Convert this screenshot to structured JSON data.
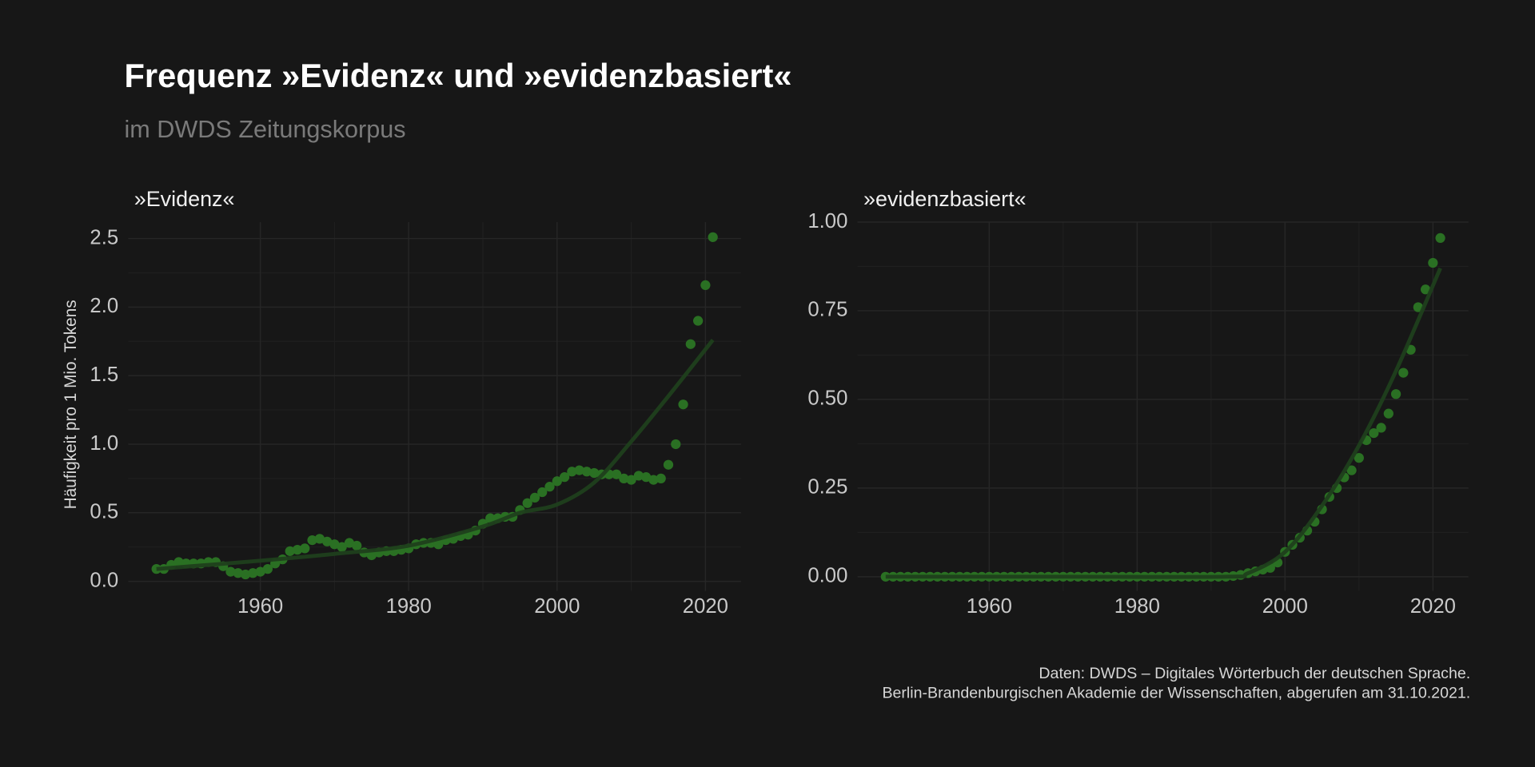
{
  "title": "Frequenz »Evidenz« und »evidenzbasiert«",
  "subtitle": "im DWDS Zeitungskorpus",
  "caption": [
    "Daten: DWDS – Digitales Wörterbuch der deutschen Sprache.",
    "Berlin-Brandenburgischen Akademie der Wissenschaften, abgerufen am 31.10.2021."
  ],
  "chart_data": [
    {
      "type": "scatter",
      "title": "»Evidenz«",
      "ylabel": "Häufigkeit pro 1 Mio. Tokens",
      "x": [
        1946,
        1947,
        1948,
        1949,
        1950,
        1951,
        1952,
        1953,
        1954,
        1955,
        1956,
        1957,
        1958,
        1959,
        1960,
        1961,
        1962,
        1963,
        1964,
        1965,
        1966,
        1967,
        1968,
        1969,
        1970,
        1971,
        1972,
        1973,
        1974,
        1975,
        1976,
        1977,
        1978,
        1979,
        1980,
        1981,
        1982,
        1983,
        1984,
        1985,
        1986,
        1987,
        1988,
        1989,
        1990,
        1991,
        1992,
        1993,
        1994,
        1995,
        1996,
        1997,
        1998,
        1999,
        2000,
        2001,
        2002,
        2003,
        2004,
        2005,
        2006,
        2007,
        2008,
        2009,
        2010,
        2011,
        2012,
        2013,
        2014,
        2015,
        2016,
        2017,
        2018,
        2019,
        2020,
        2021
      ],
      "series": [
        {
          "color": "#2a7023",
          "values": [
            0.09,
            0.09,
            0.12,
            0.14,
            0.13,
            0.13,
            0.13,
            0.14,
            0.14,
            0.11,
            0.07,
            0.06,
            0.05,
            0.06,
            0.07,
            0.09,
            0.13,
            0.16,
            0.22,
            0.23,
            0.24,
            0.3,
            0.31,
            0.29,
            0.27,
            0.25,
            0.28,
            0.26,
            0.21,
            0.19,
            0.21,
            0.22,
            0.22,
            0.23,
            0.24,
            0.27,
            0.28,
            0.28,
            0.27,
            0.3,
            0.31,
            0.33,
            0.34,
            0.37,
            0.42,
            0.46,
            0.46,
            0.47,
            0.47,
            0.52,
            0.57,
            0.61,
            0.65,
            0.69,
            0.73,
            0.76,
            0.8,
            0.81,
            0.8,
            0.79,
            0.78,
            0.78,
            0.78,
            0.75,
            0.74,
            0.77,
            0.76,
            0.74,
            0.75,
            0.85,
            1.0,
            1.29,
            1.73,
            1.9,
            2.16,
            2.51
          ]
        }
      ],
      "trend": {
        "color": "#1f3f1c",
        "x": [
          1946,
          1960,
          1970,
          1980,
          1990,
          1995,
          2000,
          2005,
          2010,
          2015,
          2021
        ],
        "values": [
          0.09,
          0.15,
          0.2,
          0.26,
          0.4,
          0.5,
          0.56,
          0.72,
          1.02,
          1.35,
          1.76
        ]
      },
      "xlim": [
        1942.2,
        2024.8
      ],
      "xticks": [
        1960,
        1980,
        2000,
        2020
      ],
      "ylim": [
        -0.07,
        2.62
      ],
      "yticks": [
        {
          "value": 0,
          "label": "0.0"
        },
        0.5,
        {
          "value": 1,
          "label": "1.0"
        },
        1.5,
        {
          "value": 2,
          "label": "2.0"
        },
        2.5
      ],
      "grid": true
    },
    {
      "type": "scatter",
      "title": "»evidenzbasiert«",
      "x": [
        1946,
        1947,
        1948,
        1949,
        1950,
        1951,
        1952,
        1953,
        1954,
        1955,
        1956,
        1957,
        1958,
        1959,
        1960,
        1961,
        1962,
        1963,
        1964,
        1965,
        1966,
        1967,
        1968,
        1969,
        1970,
        1971,
        1972,
        1973,
        1974,
        1975,
        1976,
        1977,
        1978,
        1979,
        1980,
        1981,
        1982,
        1983,
        1984,
        1985,
        1986,
        1987,
        1988,
        1989,
        1990,
        1991,
        1992,
        1993,
        1994,
        1995,
        1996,
        1997,
        1998,
        1999,
        2000,
        2001,
        2002,
        2003,
        2004,
        2005,
        2006,
        2007,
        2008,
        2009,
        2010,
        2011,
        2012,
        2013,
        2014,
        2015,
        2016,
        2017,
        2018,
        2019,
        2020,
        2021
      ],
      "series": [
        {
          "color": "#2a7023",
          "values": [
            0,
            0,
            0,
            0,
            0,
            0,
            0,
            0,
            0,
            0,
            0,
            0,
            0,
            0,
            0,
            0,
            0,
            0,
            0,
            0,
            0,
            0,
            0,
            0,
            0,
            0,
            0,
            0,
            0,
            0,
            0,
            0,
            0,
            0,
            0,
            0,
            0,
            0,
            0,
            0,
            0,
            0,
            0,
            0,
            0,
            0,
            0,
            0.002,
            0.005,
            0.01,
            0.015,
            0.02,
            0.025,
            0.04,
            0.07,
            0.09,
            0.11,
            0.13,
            0.155,
            0.19,
            0.225,
            0.25,
            0.28,
            0.3,
            0.335,
            0.385,
            0.405,
            0.42,
            0.46,
            0.515,
            0.575,
            0.64,
            0.76,
            0.81,
            0.885,
            0.955
          ]
        }
      ],
      "trend": {
        "color": "#1f3f1c",
        "x": [
          1946,
          1970,
          1992,
          1995,
          2000,
          2005,
          2010,
          2015,
          2021
        ],
        "values": [
          0,
          0,
          0,
          0.01,
          0.07,
          0.2,
          0.37,
          0.58,
          0.87
        ]
      },
      "xlim": [
        1942.2,
        2024.8
      ],
      "xticks": [
        1960,
        1980,
        2000,
        2020
      ],
      "ylim": [
        -0.04,
        1.0
      ],
      "yticks": [
        {
          "value": 0,
          "label": "0.00"
        },
        0.25,
        {
          "value": 0.5,
          "label": "0.50"
        },
        0.75,
        {
          "value": 1,
          "label": "1.00"
        }
      ],
      "grid": true
    }
  ]
}
